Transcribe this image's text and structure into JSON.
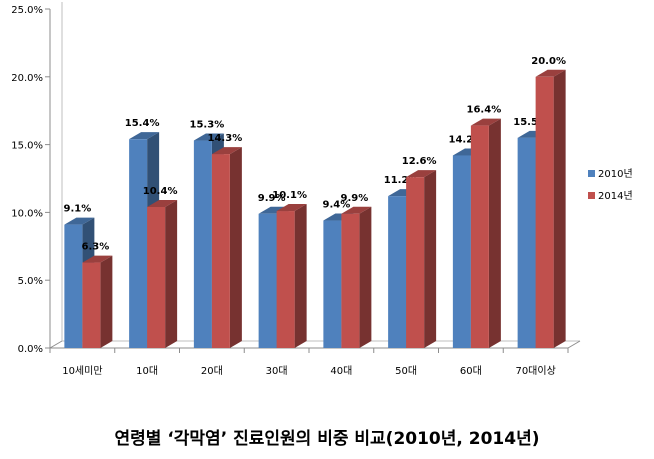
{
  "chart_data": {
    "type": "bar",
    "title": "",
    "xlabel": "",
    "ylabel": "",
    "categories": [
      "10세미만",
      "10대",
      "20대",
      "30대",
      "40대",
      "50대",
      "60대",
      "70대이상"
    ],
    "series": [
      {
        "name": "2010년",
        "values": [
          9.1,
          15.4,
          15.3,
          9.9,
          9.4,
          11.2,
          14.2,
          15.5
        ],
        "labels": [
          "9.1%",
          "15.4%",
          "15.3%",
          "9.9%",
          "9.4%",
          "11.2%",
          "14.2%",
          "15.5%"
        ],
        "color": "#4F81BD"
      },
      {
        "name": "2014년",
        "values": [
          6.3,
          10.4,
          14.3,
          10.1,
          9.9,
          12.6,
          16.4,
          20.0
        ],
        "labels": [
          "6.3%",
          "10.4%",
          "14.3%",
          "10.1%",
          "9.9%",
          "12.6%",
          "16.4%",
          "20.0%"
        ],
        "color": "#C0504D"
      }
    ],
    "ylim": [
      0,
      25
    ],
    "yticks": [
      0,
      5,
      10,
      15,
      20,
      25
    ],
    "ytick_labels": [
      "0.0%",
      "5.0%",
      "10.0%",
      "15.0%",
      "20.0%",
      "25.0%"
    ],
    "grid": false,
    "legend_position": "right",
    "style": "3d-clustered-column"
  },
  "caption": "연령별 ‘각막염’ 진료인원의 비중 비교(2010년, 2014년)"
}
